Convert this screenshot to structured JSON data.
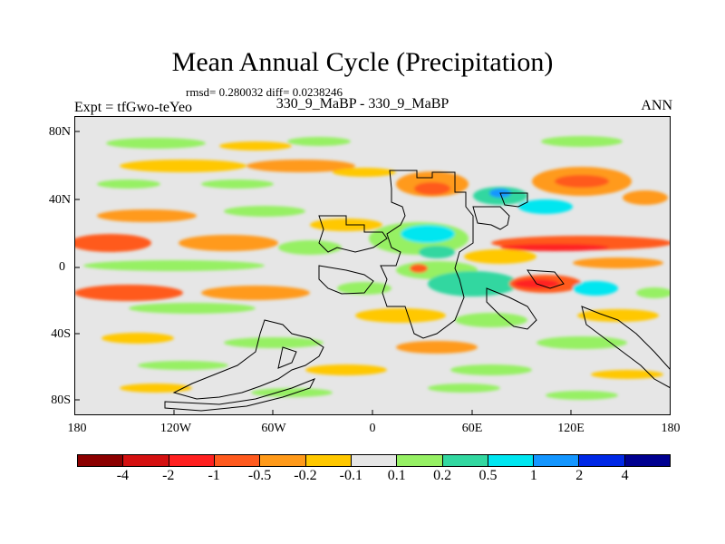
{
  "title": "Mean Annual Cycle (Precipitation)",
  "stats": "rmsd= 0.280032 diff= 0.0238246",
  "expt": "Expt = tfGwo-teYeo",
  "comparison": "330_9_MaBP - 330_9_MaBP",
  "season": "ANN",
  "y_ticks": [
    "80N",
    "40N",
    "0",
    "40S",
    "80S"
  ],
  "x_ticks": [
    "180",
    "120W",
    "60W",
    "0",
    "60E",
    "120E",
    "180"
  ],
  "colorbar": {
    "colors": [
      "#8b0000",
      "#d41010",
      "#ff2020",
      "#ff5a1e",
      "#ff9a1a",
      "#ffc800",
      "#e6e6e6",
      "#96f064",
      "#32d7a0",
      "#00e6f0",
      "#1496ff",
      "#0028e6",
      "#000090"
    ],
    "labels": [
      "-4",
      "-2",
      "-1",
      "-0.5",
      "-0.2",
      "-0.1",
      "0.1",
      "0.2",
      "0.5",
      "1",
      "2",
      "4"
    ]
  }
}
